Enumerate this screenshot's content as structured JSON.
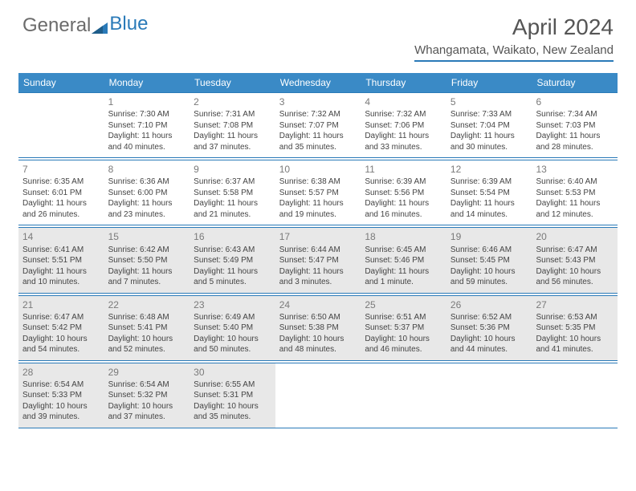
{
  "brand": {
    "part1": "General",
    "part2": "Blue"
  },
  "title": "April 2024",
  "location": "Whangamata, Waikato, New Zealand",
  "colors": {
    "headerBar": "#3a8ac6",
    "ruleLine": "#2a7ab8",
    "shadedCell": "#e8e8e8",
    "bodyText": "#444444",
    "dayNum": "#7a7a7a",
    "logoGray": "#6b6b6b",
    "logoBlue": "#2a7ab8"
  },
  "dayNames": [
    "Sunday",
    "Monday",
    "Tuesday",
    "Wednesday",
    "Thursday",
    "Friday",
    "Saturday"
  ],
  "weeks": [
    [
      {
        "n": "",
        "lines": [],
        "shade": false
      },
      {
        "n": "1",
        "lines": [
          "Sunrise: 7:30 AM",
          "Sunset: 7:10 PM",
          "Daylight: 11 hours and 40 minutes."
        ],
        "shade": false
      },
      {
        "n": "2",
        "lines": [
          "Sunrise: 7:31 AM",
          "Sunset: 7:08 PM",
          "Daylight: 11 hours and 37 minutes."
        ],
        "shade": false
      },
      {
        "n": "3",
        "lines": [
          "Sunrise: 7:32 AM",
          "Sunset: 7:07 PM",
          "Daylight: 11 hours and 35 minutes."
        ],
        "shade": false
      },
      {
        "n": "4",
        "lines": [
          "Sunrise: 7:32 AM",
          "Sunset: 7:06 PM",
          "Daylight: 11 hours and 33 minutes."
        ],
        "shade": false
      },
      {
        "n": "5",
        "lines": [
          "Sunrise: 7:33 AM",
          "Sunset: 7:04 PM",
          "Daylight: 11 hours and 30 minutes."
        ],
        "shade": false
      },
      {
        "n": "6",
        "lines": [
          "Sunrise: 7:34 AM",
          "Sunset: 7:03 PM",
          "Daylight: 11 hours and 28 minutes."
        ],
        "shade": false
      }
    ],
    [
      {
        "n": "7",
        "lines": [
          "Sunrise: 6:35 AM",
          "Sunset: 6:01 PM",
          "Daylight: 11 hours and 26 minutes."
        ],
        "shade": false
      },
      {
        "n": "8",
        "lines": [
          "Sunrise: 6:36 AM",
          "Sunset: 6:00 PM",
          "Daylight: 11 hours and 23 minutes."
        ],
        "shade": false
      },
      {
        "n": "9",
        "lines": [
          "Sunrise: 6:37 AM",
          "Sunset: 5:58 PM",
          "Daylight: 11 hours and 21 minutes."
        ],
        "shade": false
      },
      {
        "n": "10",
        "lines": [
          "Sunrise: 6:38 AM",
          "Sunset: 5:57 PM",
          "Daylight: 11 hours and 19 minutes."
        ],
        "shade": false
      },
      {
        "n": "11",
        "lines": [
          "Sunrise: 6:39 AM",
          "Sunset: 5:56 PM",
          "Daylight: 11 hours and 16 minutes."
        ],
        "shade": false
      },
      {
        "n": "12",
        "lines": [
          "Sunrise: 6:39 AM",
          "Sunset: 5:54 PM",
          "Daylight: 11 hours and 14 minutes."
        ],
        "shade": false
      },
      {
        "n": "13",
        "lines": [
          "Sunrise: 6:40 AM",
          "Sunset: 5:53 PM",
          "Daylight: 11 hours and 12 minutes."
        ],
        "shade": false
      }
    ],
    [
      {
        "n": "14",
        "lines": [
          "Sunrise: 6:41 AM",
          "Sunset: 5:51 PM",
          "Daylight: 11 hours and 10 minutes."
        ],
        "shade": true
      },
      {
        "n": "15",
        "lines": [
          "Sunrise: 6:42 AM",
          "Sunset: 5:50 PM",
          "Daylight: 11 hours and 7 minutes."
        ],
        "shade": true
      },
      {
        "n": "16",
        "lines": [
          "Sunrise: 6:43 AM",
          "Sunset: 5:49 PM",
          "Daylight: 11 hours and 5 minutes."
        ],
        "shade": true
      },
      {
        "n": "17",
        "lines": [
          "Sunrise: 6:44 AM",
          "Sunset: 5:47 PM",
          "Daylight: 11 hours and 3 minutes."
        ],
        "shade": true
      },
      {
        "n": "18",
        "lines": [
          "Sunrise: 6:45 AM",
          "Sunset: 5:46 PM",
          "Daylight: 11 hours and 1 minute."
        ],
        "shade": true
      },
      {
        "n": "19",
        "lines": [
          "Sunrise: 6:46 AM",
          "Sunset: 5:45 PM",
          "Daylight: 10 hours and 59 minutes."
        ],
        "shade": true
      },
      {
        "n": "20",
        "lines": [
          "Sunrise: 6:47 AM",
          "Sunset: 5:43 PM",
          "Daylight: 10 hours and 56 minutes."
        ],
        "shade": true
      }
    ],
    [
      {
        "n": "21",
        "lines": [
          "Sunrise: 6:47 AM",
          "Sunset: 5:42 PM",
          "Daylight: 10 hours and 54 minutes."
        ],
        "shade": true
      },
      {
        "n": "22",
        "lines": [
          "Sunrise: 6:48 AM",
          "Sunset: 5:41 PM",
          "Daylight: 10 hours and 52 minutes."
        ],
        "shade": true
      },
      {
        "n": "23",
        "lines": [
          "Sunrise: 6:49 AM",
          "Sunset: 5:40 PM",
          "Daylight: 10 hours and 50 minutes."
        ],
        "shade": true
      },
      {
        "n": "24",
        "lines": [
          "Sunrise: 6:50 AM",
          "Sunset: 5:38 PM",
          "Daylight: 10 hours and 48 minutes."
        ],
        "shade": true
      },
      {
        "n": "25",
        "lines": [
          "Sunrise: 6:51 AM",
          "Sunset: 5:37 PM",
          "Daylight: 10 hours and 46 minutes."
        ],
        "shade": true
      },
      {
        "n": "26",
        "lines": [
          "Sunrise: 6:52 AM",
          "Sunset: 5:36 PM",
          "Daylight: 10 hours and 44 minutes."
        ],
        "shade": true
      },
      {
        "n": "27",
        "lines": [
          "Sunrise: 6:53 AM",
          "Sunset: 5:35 PM",
          "Daylight: 10 hours and 41 minutes."
        ],
        "shade": true
      }
    ],
    [
      {
        "n": "28",
        "lines": [
          "Sunrise: 6:54 AM",
          "Sunset: 5:33 PM",
          "Daylight: 10 hours and 39 minutes."
        ],
        "shade": true
      },
      {
        "n": "29",
        "lines": [
          "Sunrise: 6:54 AM",
          "Sunset: 5:32 PM",
          "Daylight: 10 hours and 37 minutes."
        ],
        "shade": true
      },
      {
        "n": "30",
        "lines": [
          "Sunrise: 6:55 AM",
          "Sunset: 5:31 PM",
          "Daylight: 10 hours and 35 minutes."
        ],
        "shade": true
      },
      {
        "n": "",
        "lines": [],
        "shade": false
      },
      {
        "n": "",
        "lines": [],
        "shade": false
      },
      {
        "n": "",
        "lines": [],
        "shade": false
      },
      {
        "n": "",
        "lines": [],
        "shade": false
      }
    ]
  ]
}
